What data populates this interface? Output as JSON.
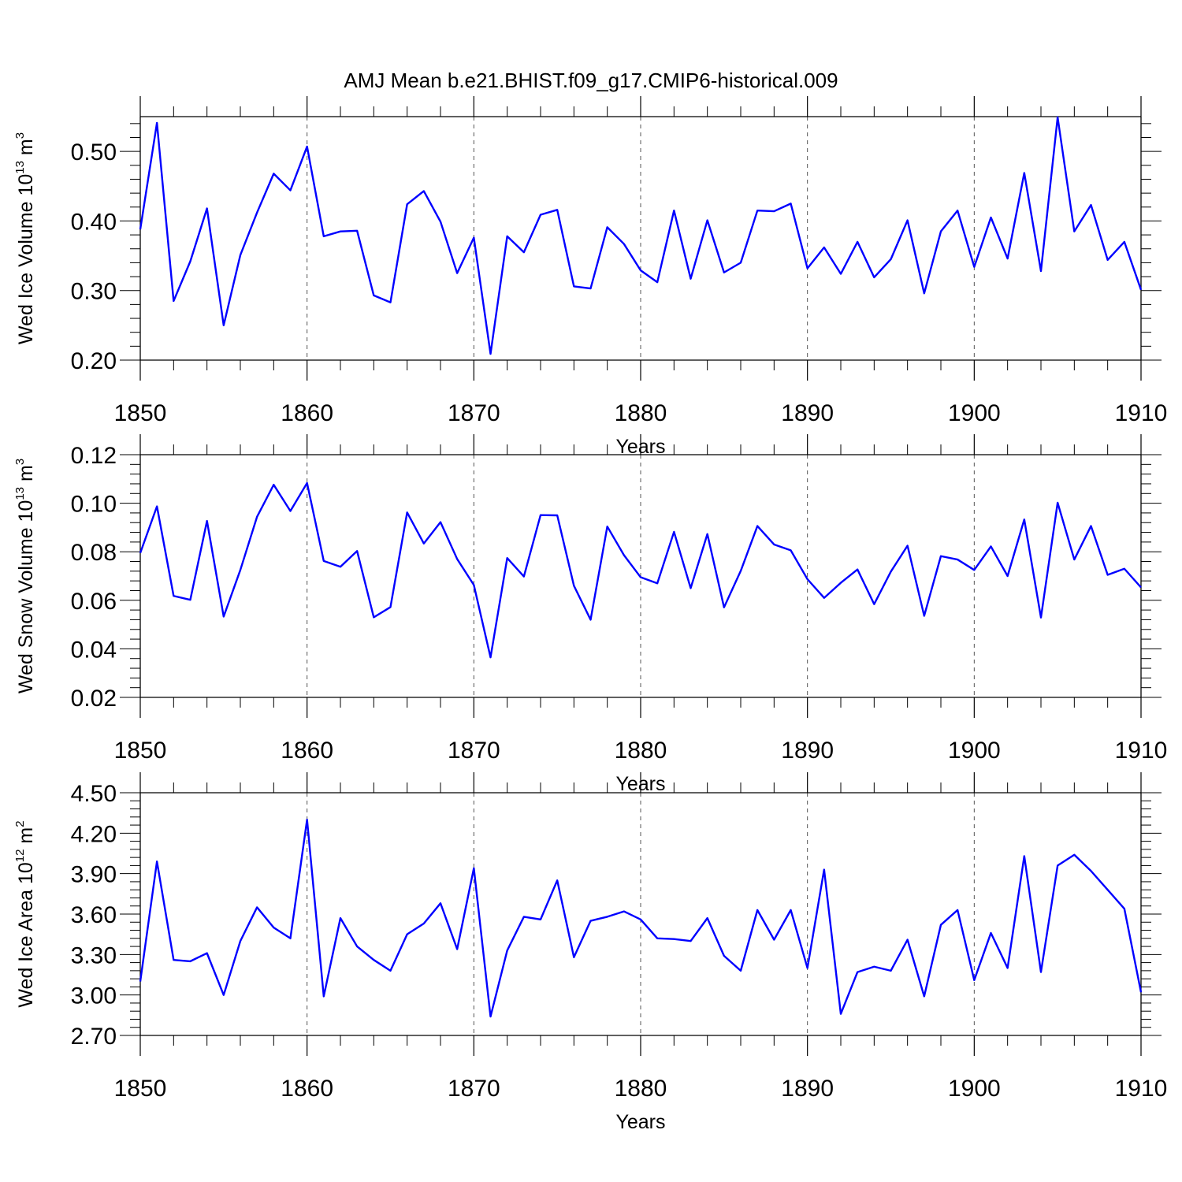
{
  "title": "AMJ Mean b.e21.BHIST.f09_g17.CMIP6-historical.009",
  "chart_data": [
    {
      "type": "line",
      "xlabel": "Years",
      "ylabel": {
        "prefix": "Wed Ice Volume 10",
        "exponent": "13",
        "unit": " m",
        "unit_exponent": "3"
      },
      "xlim": [
        1850,
        1910
      ],
      "ylim": [
        0.2,
        0.55
      ],
      "xticks": [
        1850,
        1860,
        1870,
        1880,
        1890,
        1900,
        1910
      ],
      "xtick_labels": [
        "1850",
        "1860",
        "1870",
        "1880",
        "1890",
        "1900",
        "1910"
      ],
      "yticks": [
        0.2,
        0.3,
        0.4,
        0.5
      ],
      "ytick_labels": [
        "0.20",
        "0.30",
        "0.40",
        "0.50"
      ],
      "x_start": 1850,
      "series": [
        {
          "color": "#0000ff",
          "values": [
            0.388,
            0.541,
            0.285,
            0.342,
            0.418,
            0.25,
            0.351,
            0.412,
            0.468,
            0.444,
            0.507,
            0.378,
            0.385,
            0.386,
            0.293,
            0.283,
            0.424,
            0.443,
            0.399,
            0.325,
            0.376,
            0.209,
            0.378,
            0.355,
            0.409,
            0.416,
            0.306,
            0.303,
            0.391,
            0.367,
            0.329,
            0.312,
            0.415,
            0.317,
            0.401,
            0.326,
            0.34,
            0.415,
            0.414,
            0.425,
            0.332,
            0.362,
            0.324,
            0.37,
            0.319,
            0.345,
            0.401,
            0.296,
            0.385,
            0.415,
            0.334,
            0.405,
            0.346,
            0.469,
            0.328,
            0.549,
            0.385,
            0.423,
            0.344,
            0.37,
            0.301
          ]
        }
      ]
    },
    {
      "type": "line",
      "xlabel": "Years",
      "ylabel": {
        "prefix": "Wed Snow Volume 10",
        "exponent": "13",
        "unit": " m",
        "unit_exponent": "3"
      },
      "xlim": [
        1850,
        1910
      ],
      "ylim": [
        0.02,
        0.12
      ],
      "xticks": [
        1850,
        1860,
        1870,
        1880,
        1890,
        1900,
        1910
      ],
      "xtick_labels": [
        "1850",
        "1860",
        "1870",
        "1880",
        "1890",
        "1900",
        "1910"
      ],
      "yticks": [
        0.02,
        0.04,
        0.06,
        0.08,
        0.1,
        0.12
      ],
      "ytick_labels": [
        "0.02",
        "0.04",
        "0.06",
        "0.08",
        "0.10",
        "0.12"
      ],
      "x_start": 1850,
      "series": [
        {
          "color": "#0000ff",
          "values": [
            0.0795,
            0.0987,
            0.0618,
            0.0602,
            0.0927,
            0.0533,
            0.0725,
            0.0944,
            0.1076,
            0.0968,
            0.1083,
            0.0762,
            0.0738,
            0.0803,
            0.053,
            0.0572,
            0.0962,
            0.0834,
            0.0922,
            0.077,
            0.0663,
            0.0365,
            0.0774,
            0.0698,
            0.0951,
            0.095,
            0.066,
            0.052,
            0.0904,
            0.0786,
            0.0695,
            0.067,
            0.0882,
            0.065,
            0.0873,
            0.0571,
            0.0721,
            0.0906,
            0.083,
            0.0806,
            0.0687,
            0.061,
            0.0672,
            0.0727,
            0.0584,
            0.0718,
            0.0825,
            0.0536,
            0.0782,
            0.0768,
            0.0725,
            0.0822,
            0.07,
            0.0933,
            0.0529,
            0.1002,
            0.0768,
            0.0906,
            0.0705,
            0.073,
            0.0653
          ]
        }
      ]
    },
    {
      "type": "line",
      "xlabel": "Years",
      "ylabel": {
        "prefix": "Wed Ice Area 10",
        "exponent": "12",
        "unit": " m",
        "unit_exponent": "2"
      },
      "xlim": [
        1850,
        1910
      ],
      "ylim": [
        2.7,
        4.5
      ],
      "xticks": [
        1850,
        1860,
        1870,
        1880,
        1890,
        1900,
        1910
      ],
      "xtick_labels": [
        "1850",
        "1860",
        "1870",
        "1880",
        "1890",
        "1900",
        "1910"
      ],
      "yticks": [
        2.7,
        3.0,
        3.3,
        3.6,
        3.9,
        4.2,
        4.5
      ],
      "ytick_labels": [
        "2.70",
        "3.00",
        "3.30",
        "3.60",
        "3.90",
        "4.20",
        "4.50"
      ],
      "x_start": 1850,
      "series": [
        {
          "color": "#0000ff",
          "values": [
            3.1,
            3.99,
            3.26,
            3.25,
            3.31,
            3.0,
            3.4,
            3.65,
            3.5,
            3.42,
            4.3,
            2.99,
            3.57,
            3.36,
            3.26,
            3.18,
            3.45,
            3.53,
            3.68,
            3.34,
            3.94,
            2.84,
            3.33,
            3.58,
            3.56,
            3.85,
            3.28,
            3.55,
            3.58,
            3.62,
            3.56,
            3.42,
            3.415,
            3.4,
            3.57,
            3.29,
            3.18,
            3.63,
            3.41,
            3.63,
            3.2,
            3.93,
            2.86,
            3.17,
            3.21,
            3.18,
            3.41,
            2.99,
            3.52,
            3.63,
            3.11,
            3.46,
            3.2,
            4.03,
            3.17,
            3.96,
            4.04,
            3.92,
            3.78,
            3.64,
            3.02
          ]
        }
      ]
    }
  ]
}
